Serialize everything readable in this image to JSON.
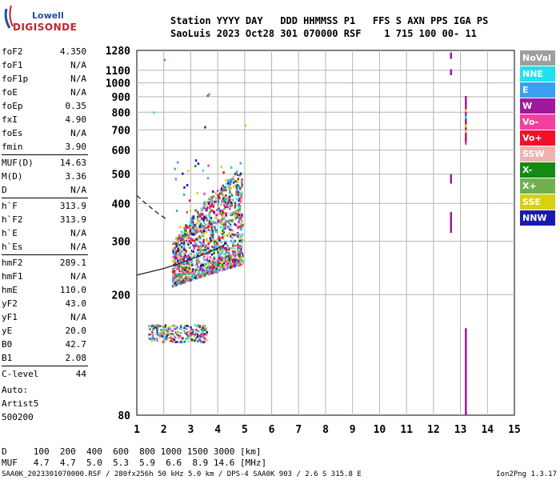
{
  "logo": {
    "line1": "Lowell",
    "line2": "DIGISONDE"
  },
  "header": {
    "line1": "Station YYYY DAY   DDD HHMMSS P1   FFS S AXN PPS IGA PS",
    "line2": "SaoLuis 2023 Oct28 301 070000 RSF    1 715 100 00- 11"
  },
  "params": [
    {
      "name": "foF2",
      "value": "4.350"
    },
    {
      "name": "foF1",
      "value": "N/A"
    },
    {
      "name": "foF1p",
      "value": "N/A"
    },
    {
      "name": "foE",
      "value": "N/A"
    },
    {
      "name": "foEp",
      "value": "0.35"
    },
    {
      "name": "fxI",
      "value": "4.90"
    },
    {
      "name": "foEs",
      "value": "N/A"
    },
    {
      "name": "fmin",
      "value": "3.90"
    },
    {
      "name": "MUF(D)",
      "value": "14.63"
    },
    {
      "name": "M(D)",
      "value": "3.36"
    },
    {
      "name": "D",
      "value": "N/A"
    },
    {
      "name": "h`F",
      "value": "313.9"
    },
    {
      "name": "h`F2",
      "value": "313.9"
    },
    {
      "name": "h`E",
      "value": "N/A"
    },
    {
      "name": "h`Es",
      "value": "N/A"
    },
    {
      "name": "hmF2",
      "value": "289.1"
    },
    {
      "name": "hmF1",
      "value": "N/A"
    },
    {
      "name": "hmE",
      "value": "110.0"
    },
    {
      "name": "yF2",
      "value": "43.0"
    },
    {
      "name": "yF1",
      "value": "N/A"
    },
    {
      "name": "yE",
      "value": "20.0"
    },
    {
      "name": "B0",
      "value": "42.7"
    },
    {
      "name": "B1",
      "value": "2.08"
    },
    {
      "name": "C-level",
      "value": "44"
    }
  ],
  "auto": {
    "line1": "Auto:",
    "line2": "Artist5",
    "line3": "500200"
  },
  "bottom": {
    "d_line": "D     100  200  400  600  800 1000 1500 3000 [km]",
    "muf_line": "MUF   4.7  4.7  5.0  5.3  5.9  6.6  8.9 14.6 [MHz]"
  },
  "footer": "SAA0K_2023301070000.RSF / 280fx256h 50 kHz 5.0 km / DPS-4 SAA0K 903 / 2.6 S 315.8 E",
  "footer_version": "Ion2Png 1.3.17",
  "legend": [
    {
      "label": "NoVal",
      "color": "#9e9e9e"
    },
    {
      "label": "NNE",
      "color": "#22e0f0"
    },
    {
      "label": "E",
      "color": "#3aa0f0"
    },
    {
      "label": "W",
      "color": "#a0189c"
    },
    {
      "label": "Vo-",
      "color": "#f040a0"
    },
    {
      "label": "Vo+",
      "color": "#f0102a"
    },
    {
      "label": "SSW",
      "color": "#f2b0b0"
    },
    {
      "label": "X-",
      "color": "#138a13"
    },
    {
      "label": "X+",
      "color": "#70b050"
    },
    {
      "label": "SSE",
      "color": "#d8d010"
    },
    {
      "label": "NNW",
      "color": "#1a1ab0"
    }
  ],
  "chart_data": {
    "type": "scatter",
    "xlim": [
      1,
      15
    ],
    "ylim": [
      80,
      1280
    ],
    "xticks": [
      "1",
      "2",
      "3",
      "4",
      "5",
      "6",
      "7",
      "8",
      "9",
      "10",
      "11",
      "12",
      "13",
      "14",
      "15"
    ],
    "yticks": [
      "80",
      "200",
      "300",
      "400",
      "500",
      "600",
      "700",
      "800",
      "900",
      "1000",
      "1100",
      "1280"
    ],
    "grid": true,
    "y_scale": "log",
    "trace_solid": [
      [
        1.0,
        232
      ],
      [
        1.5,
        238
      ],
      [
        2.0,
        244
      ],
      [
        2.5,
        252
      ],
      [
        3.0,
        262
      ],
      [
        3.5,
        272
      ],
      [
        4.0,
        284
      ],
      [
        4.35,
        296
      ]
    ],
    "trace_dashed": [
      [
        1.0,
        425
      ],
      [
        1.4,
        395
      ],
      [
        1.8,
        370
      ],
      [
        2.1,
        355
      ]
    ],
    "echo_cluster_main": {
      "x_range": [
        2.3,
        4.9
      ],
      "h_range": [
        210,
        560
      ]
    },
    "echo_cluster_low": {
      "x_range": [
        1.4,
        3.6
      ],
      "h_range": [
        140,
        160
      ]
    },
    "vertical_bars": [
      {
        "x": 12.65,
        "h_range": [
          1200,
          1260
        ],
        "color": "#a0189c"
      },
      {
        "x": 12.65,
        "h_range": [
          1060,
          1110
        ],
        "color": "#a0189c"
      },
      {
        "x": 12.65,
        "h_range": [
          465,
          500
        ],
        "color": "#a0189c"
      },
      {
        "x": 12.65,
        "h_range": [
          320,
          375
        ],
        "color": "#a0189c"
      },
      {
        "x": 13.2,
        "h_range": [
          630,
          905
        ],
        "color": "#a0189c"
      },
      {
        "x": 13.2,
        "h_range": [
          80,
          155
        ],
        "color": "#a0189c"
      }
    ]
  }
}
